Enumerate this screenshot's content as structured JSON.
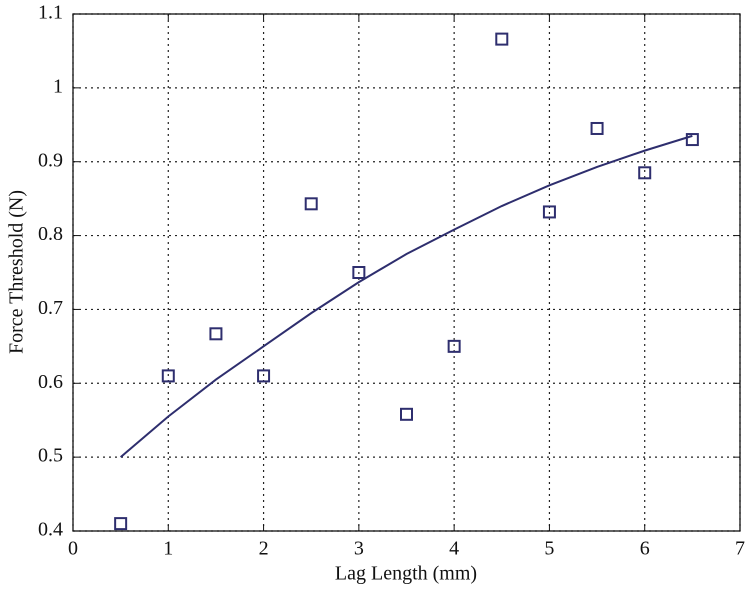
{
  "chart_data": {
    "type": "scatter",
    "xlabel": "Lag Length (mm)",
    "ylabel": "Force Threshold (N)",
    "xlim": [
      0,
      7
    ],
    "ylim": [
      0.4,
      1.1
    ],
    "xticks": [
      0,
      1,
      2,
      3,
      4,
      5,
      6,
      7
    ],
    "yticks": [
      0.4,
      0.5,
      0.6,
      0.7,
      0.8,
      0.9,
      1,
      1.1
    ],
    "grid": true,
    "series": [
      {
        "mode": "markers",
        "color": "#2e2e6e",
        "x": [
          0.5,
          1,
          1.5,
          2,
          2.5,
          3,
          3.5,
          4,
          4.5,
          5,
          5.5,
          6,
          6.5
        ],
        "values": [
          0.41,
          0.61,
          0.667,
          0.61,
          0.843,
          0.75,
          0.558,
          0.65,
          1.066,
          0.832,
          0.945,
          0.885,
          0.93
        ]
      },
      {
        "mode": "line",
        "color": "#2e2e6e",
        "x": [
          0.5,
          1,
          1.5,
          2,
          2.5,
          3,
          3.5,
          4,
          4.5,
          5,
          5.5,
          6,
          6.5
        ],
        "values": [
          0.5,
          0.555,
          0.605,
          0.65,
          0.695,
          0.737,
          0.775,
          0.808,
          0.84,
          0.868,
          0.893,
          0.915,
          0.935
        ]
      }
    ]
  }
}
